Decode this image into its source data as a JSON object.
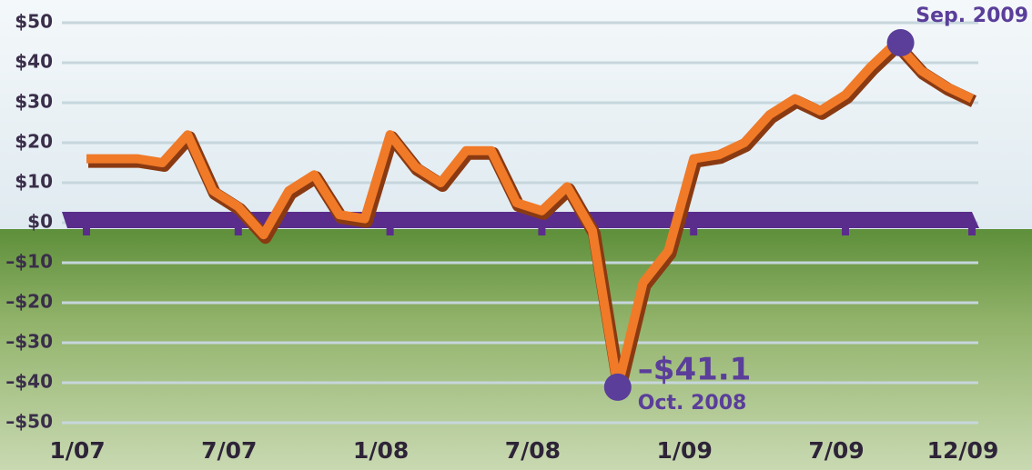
{
  "chart_data": {
    "type": "line",
    "categories": [
      "1/07",
      null,
      null,
      null,
      null,
      null,
      "7/07",
      null,
      null,
      null,
      null,
      null,
      "1/08",
      null,
      null,
      null,
      null,
      null,
      "7/08",
      null,
      null,
      null,
      null,
      null,
      "1/09",
      null,
      null,
      null,
      null,
      null,
      "7/09",
      null,
      null,
      null,
      null,
      "12/09"
    ],
    "series": [
      {
        "color": "#f07a28",
        "values": [
          16,
          16,
          16,
          15,
          22,
          8,
          4,
          -3,
          8,
          12,
          2,
          1,
          22,
          14,
          10,
          18,
          18,
          5,
          3,
          9,
          -2,
          -41.1,
          -15,
          -7,
          16,
          17,
          20,
          27,
          31,
          28,
          32,
          39,
          45,
          38,
          34,
          31
        ]
      }
    ],
    "ylim": [
      -50,
      50
    ],
    "yticks": [
      {
        "value": -50,
        "label": "–$50"
      },
      {
        "value": -40,
        "label": "–$40"
      },
      {
        "value": -30,
        "label": "–$30"
      },
      {
        "value": -20,
        "label": "–$20"
      },
      {
        "value": -10,
        "label": "–$10"
      },
      {
        "value": 0,
        "label": "$0"
      },
      {
        "value": 10,
        "label": "$10"
      },
      {
        "value": 20,
        "label": "$20"
      },
      {
        "value": 30,
        "label": "$30"
      },
      {
        "value": 40,
        "label": "$40"
      },
      {
        "value": 50,
        "label": "$50"
      }
    ],
    "grid": true,
    "annotations": [
      {
        "value": -41.1,
        "label": "–$41.1",
        "date": "Oct. 2008"
      },
      {
        "date": "Sep. 2009"
      }
    ]
  }
}
